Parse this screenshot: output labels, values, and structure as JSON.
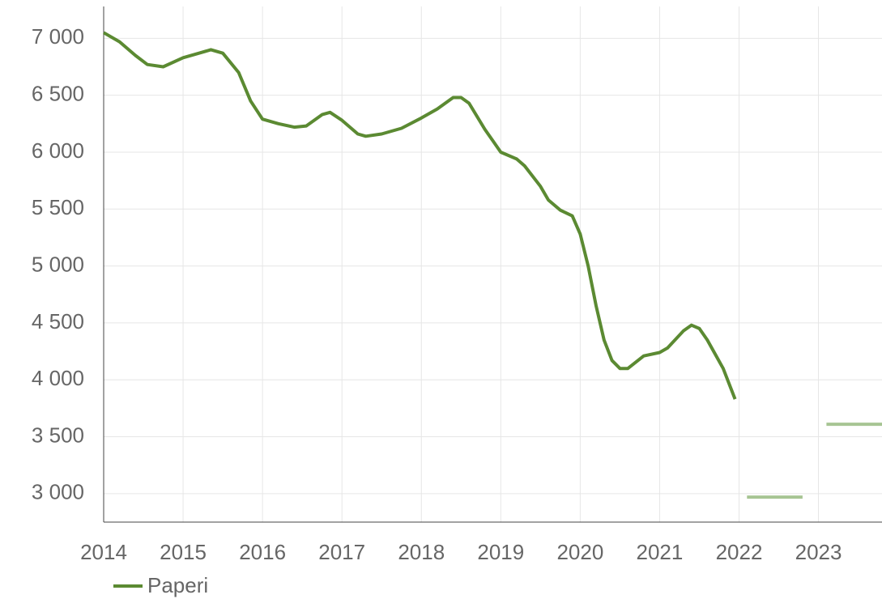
{
  "chart_data": {
    "type": "line",
    "xlim": [
      2014,
      2023.8
    ],
    "xticks": [
      2014,
      2015,
      2016,
      2017,
      2018,
      2019,
      2020,
      2021,
      2022,
      2023
    ],
    "ylim": [
      2750,
      7280
    ],
    "yticks": [
      {
        "value": 3000,
        "label": "3 000"
      },
      {
        "value": 3500,
        "label": "3 500"
      },
      {
        "value": 4000,
        "label": "4 000"
      },
      {
        "value": 4500,
        "label": "4 500"
      },
      {
        "value": 5000,
        "label": "5 000"
      },
      {
        "value": 5500,
        "label": "5 500"
      },
      {
        "value": 6000,
        "label": "6 000"
      },
      {
        "value": 6500,
        "label": "6 500"
      },
      {
        "value": 7000,
        "label": "7 000"
      }
    ],
    "grid": true,
    "legend": "bottom-left",
    "series": [
      {
        "name": "Paperi",
        "color": "#5b8a32",
        "x": [
          2014.0,
          2014.2,
          2014.4,
          2014.55,
          2014.75,
          2015.0,
          2015.2,
          2015.35,
          2015.5,
          2015.7,
          2015.85,
          2016.0,
          2016.2,
          2016.4,
          2016.55,
          2016.75,
          2016.85,
          2017.0,
          2017.2,
          2017.3,
          2017.5,
          2017.75,
          2018.0,
          2018.2,
          2018.4,
          2018.5,
          2018.6,
          2018.8,
          2018.9,
          2019.0,
          2019.2,
          2019.3,
          2019.5,
          2019.6,
          2019.75,
          2019.9,
          2020.0,
          2020.1,
          2020.2,
          2020.3,
          2020.4,
          2020.5,
          2020.6,
          2020.8,
          2021.0,
          2021.1,
          2021.3,
          2021.4,
          2021.5,
          2021.6,
          2021.8,
          2021.9,
          2021.95
        ],
        "values": [
          7050,
          6970,
          6850,
          6770,
          6750,
          6830,
          6870,
          6900,
          6870,
          6700,
          6450,
          6290,
          6250,
          6220,
          6230,
          6330,
          6350,
          6280,
          6160,
          6140,
          6160,
          6210,
          6300,
          6380,
          6480,
          6480,
          6430,
          6200,
          6100,
          6000,
          5940,
          5880,
          5700,
          5580,
          5490,
          5440,
          5280,
          5000,
          4650,
          4350,
          4170,
          4100,
          4100,
          4210,
          4240,
          4280,
          4430,
          4480,
          4450,
          4350,
          4100,
          3920,
          3830
        ]
      },
      {
        "color": "#a7c593",
        "x": [
          2022.1,
          2022.8,
          2023.0,
          2023.1,
          2023.8
        ],
        "values": [
          2970,
          2970,
          null,
          3610,
          3610
        ]
      }
    ]
  }
}
